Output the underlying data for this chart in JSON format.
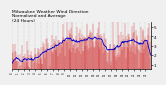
{
  "title": "Milwaukee Weather Wind Direction\nNormalized and Average\n(24 Hours)",
  "title_fontsize": 3.2,
  "background_color": "#f0f0f0",
  "plot_bg_color": "#f0f0f0",
  "grid_color": "#aaaaaa",
  "bar_color": "#cc0000",
  "line_color": "#0000cc",
  "ylim": [
    0.5,
    5.5
  ],
  "yticks": [
    1,
    2,
    3,
    4,
    5
  ],
  "ytick_labels": [
    "1",
    "2",
    "3",
    "4",
    "5"
  ],
  "n_points": 288,
  "seed": 42,
  "n_xticks": 24
}
